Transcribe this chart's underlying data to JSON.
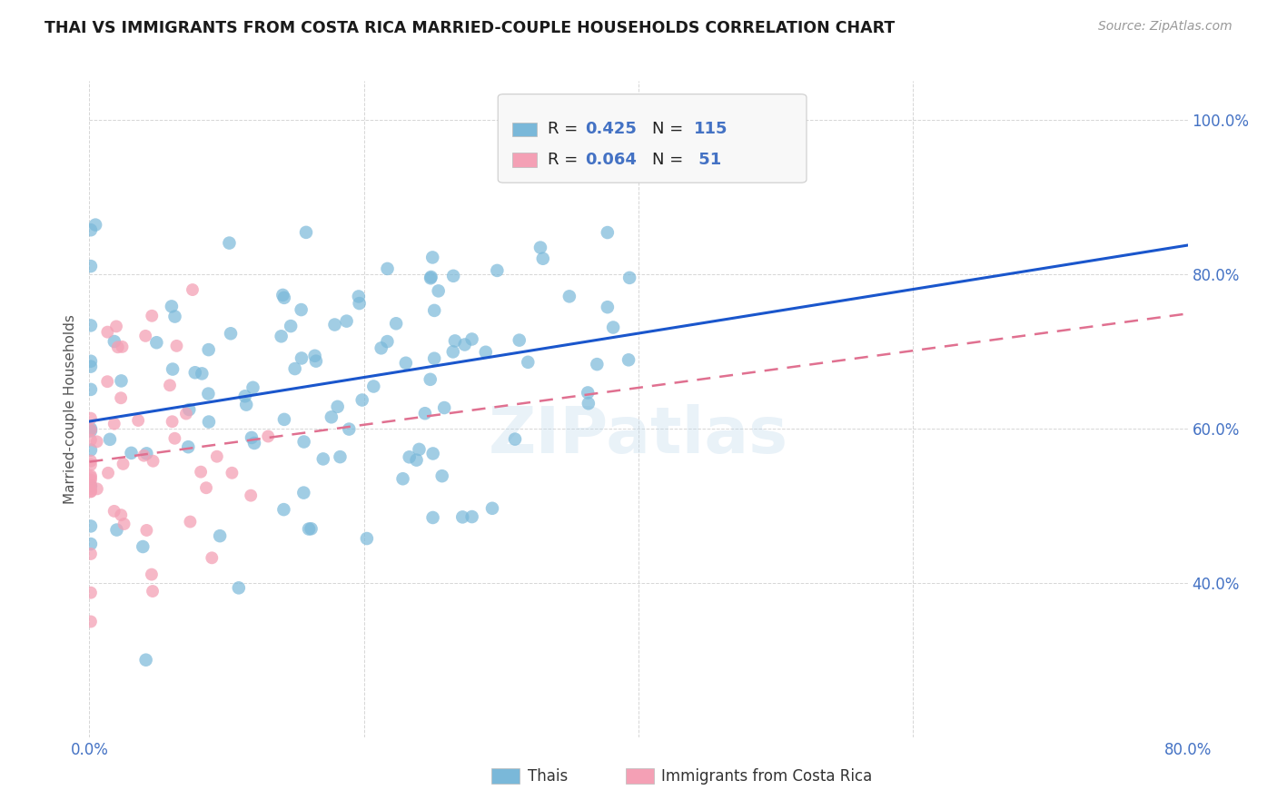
{
  "title": "THAI VS IMMIGRANTS FROM COSTA RICA MARRIED-COUPLE HOUSEHOLDS CORRELATION CHART",
  "source": "Source: ZipAtlas.com",
  "ylabel": "Married-couple Households",
  "xlim": [
    0.0,
    0.8
  ],
  "ylim": [
    0.2,
    1.05
  ],
  "xtick_labels": [
    "0.0%",
    "",
    "",
    "",
    "80.0%"
  ],
  "xtick_vals": [
    0.0,
    0.2,
    0.4,
    0.6,
    0.8
  ],
  "ytick_labels": [
    "40.0%",
    "60.0%",
    "80.0%",
    "100.0%"
  ],
  "ytick_vals": [
    0.4,
    0.6,
    0.8,
    1.0
  ],
  "blue_color": "#7ab8d9",
  "pink_color": "#f4a0b5",
  "blue_line_color": "#1a56cc",
  "pink_line_color": "#e07090",
  "R_blue": 0.425,
  "N_blue": 115,
  "R_pink": 0.064,
  "N_pink": 51,
  "legend_label_blue": "Thais",
  "legend_label_pink": "Immigrants from Costa Rica",
  "watermark": "ZIPatlas",
  "background_color": "#ffffff",
  "axis_color": "#4472c4",
  "seed_blue": 42,
  "seed_pink": 7
}
